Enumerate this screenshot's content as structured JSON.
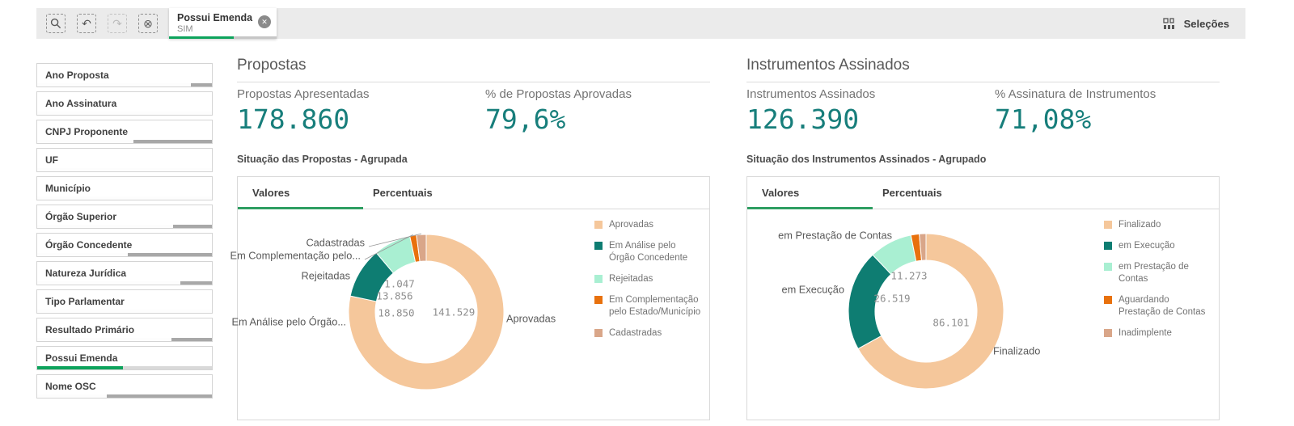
{
  "toolbar": {
    "icons": [
      {
        "name": "smart-search-icon",
        "disabled": false
      },
      {
        "name": "step-back-icon",
        "disabled": false
      },
      {
        "name": "step-forward-icon",
        "disabled": true
      },
      {
        "name": "clear-selections-icon",
        "disabled": false
      }
    ],
    "filter_chip": {
      "field": "Possui Emenda",
      "value": "SIM",
      "selected_pct": 60
    },
    "selections_button": {
      "label": "Seleções"
    }
  },
  "sidebar": {
    "items": [
      {
        "label": "Ano Proposta",
        "green_pct": 0,
        "white_pct": 88,
        "gray_pct": 12
      },
      {
        "label": "Ano Assinatura",
        "green_pct": 0,
        "white_pct": 100,
        "gray_pct": 0
      },
      {
        "label": "CNPJ Proponente",
        "green_pct": 0,
        "white_pct": 55,
        "gray_pct": 45
      },
      {
        "label": "UF",
        "green_pct": 0,
        "white_pct": 100,
        "gray_pct": 0
      },
      {
        "label": "Município",
        "green_pct": 0,
        "white_pct": 100,
        "gray_pct": 0
      },
      {
        "label": "Órgão Superior",
        "green_pct": 0,
        "white_pct": 78,
        "gray_pct": 22
      },
      {
        "label": "Órgão Concedente",
        "green_pct": 0,
        "white_pct": 52,
        "gray_pct": 48
      },
      {
        "label": "Natureza Jurídica",
        "green_pct": 0,
        "white_pct": 82,
        "gray_pct": 18
      },
      {
        "label": "Tipo Parlamentar",
        "green_pct": 0,
        "white_pct": 100,
        "gray_pct": 0
      },
      {
        "label": "Resultado Primário",
        "green_pct": 0,
        "white_pct": 77,
        "gray_pct": 23
      },
      {
        "label": "Possui Emenda",
        "green_pct": 49,
        "white_pct": 0,
        "gray_pct": 51
      },
      {
        "label": "Nome OSC",
        "green_pct": 0,
        "white_pct": 40,
        "gray_pct": 60
      }
    ]
  },
  "sections": [
    {
      "title": "Propostas",
      "kpis": [
        {
          "label": "Propostas Apresentadas",
          "value": "178.860"
        },
        {
          "label": "% de Propostas Aprovadas",
          "value": "79,6%"
        }
      ],
      "chart_title": "Situação das Propostas - Agrupada",
      "tabs": [
        {
          "label": "Valores",
          "active": true
        },
        {
          "label": "Percentuais",
          "active": false
        }
      ]
    },
    {
      "title": "Instrumentos Assinados",
      "kpis": [
        {
          "label": "Instrumentos Assinados",
          "value": "126.390"
        },
        {
          "label": "% Assinatura de Instrumentos",
          "value": "71,08%"
        }
      ],
      "chart_title": "Situação dos Instrumentos Assinados - Agrupado",
      "tabs": [
        {
          "label": "Valores",
          "active": true
        },
        {
          "label": "Percentuais",
          "active": false
        }
      ]
    }
  ],
  "chart_data": [
    {
      "type": "donut",
      "title": "Situação das Propostas - Agrupada",
      "legend_position": "right",
      "slices": [
        {
          "label": "Aprovadas",
          "callout": "Aprovadas",
          "value": 141529,
          "display": "141.529",
          "color": "#f5c79b"
        },
        {
          "label": "Em Análise pelo Órgão Concedente",
          "callout": "Em Análise pelo Órgão...",
          "value": 18850,
          "display": "18.850",
          "color": "#0e7d72"
        },
        {
          "label": "Rejeitadas",
          "callout": "Rejeitadas",
          "value": 13856,
          "display": "13.856",
          "color": "#a9efd2"
        },
        {
          "label": "Em Complementação pelo Estado/Município",
          "callout": "Em Complementação pelo...",
          "value": 1047,
          "display": "1.047",
          "color": "#e8710d"
        },
        {
          "label": "Cadastradas",
          "callout": "Cadastradas",
          "value": null,
          "display": null,
          "color": "#d9a689"
        }
      ]
    },
    {
      "type": "donut",
      "title": "Situação dos Instrumentos Assinados - Agrupado",
      "legend_position": "right",
      "slices": [
        {
          "label": "Finalizado",
          "callout": "Finalizado",
          "value": 86101,
          "display": "86.101",
          "color": "#f5c79b"
        },
        {
          "label": "em Execução",
          "callout": "em Execução",
          "value": 26519,
          "display": "26.519",
          "color": "#0e7d72"
        },
        {
          "label": "em Prestação de Contas",
          "callout": "em Prestação de Contas",
          "value": 11273,
          "display": "11.273",
          "color": "#a9efd2"
        },
        {
          "label": "Aguardando Prestação de Contas",
          "callout": null,
          "value": null,
          "display": null,
          "color": "#e8710d"
        },
        {
          "label": "Inadimplente",
          "callout": null,
          "value": null,
          "display": null,
          "color": "#d9a689"
        }
      ]
    }
  ],
  "colors": {
    "accent_green": "#0da35c",
    "kpi_value": "#177e7b",
    "excluded_gray": "#a8a8a8"
  }
}
